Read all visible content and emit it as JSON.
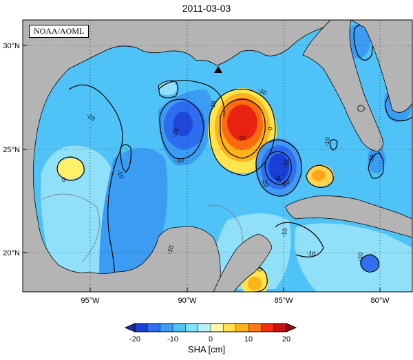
{
  "title": "2011-03-03",
  "credit": "NOAA/AOML",
  "colorbar": {
    "label": "SHA [cm]",
    "ticks": [
      "-20",
      "-10",
      "0",
      "10",
      "20"
    ],
    "colors": [
      "#1a3fd6",
      "#2f6ff0",
      "#3f9bf5",
      "#4fc3f7",
      "#7fe3f7",
      "#b8f1f8",
      "#fff9a8",
      "#ffe44d",
      "#ffb31a",
      "#ff7a10",
      "#f03010",
      "#c81010"
    ]
  },
  "axes": {
    "lon_labels": [
      "95°W",
      "90°W",
      "85°W",
      "80°W"
    ],
    "lat_labels": [
      "30°N",
      "25°N",
      "20°N"
    ]
  },
  "contour_labels": [
    "-10",
    "-10",
    "-10",
    "-10",
    "-20",
    "-10",
    "-10",
    "-10",
    "-20",
    "-30",
    "-20",
    "-10",
    "-10",
    "-20",
    "0",
    "0",
    "0",
    "-10",
    "-10",
    "-10"
  ],
  "colors": {
    "land": "#b4b4b4",
    "ocean_base": "#4fc3f7"
  }
}
